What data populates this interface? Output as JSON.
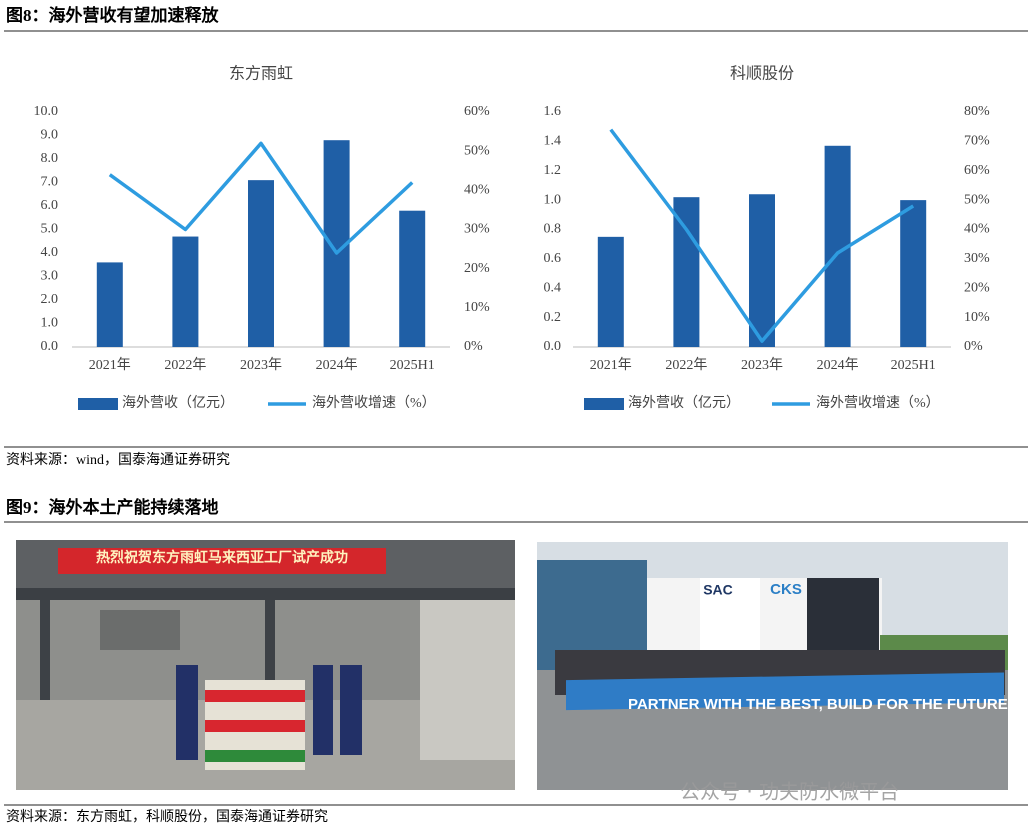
{
  "figure8": {
    "title": "图8：海外营收有望加速释放",
    "source": "资料来源：wind，国泰海通证券研究"
  },
  "chart_data": [
    {
      "type": "combo",
      "title": "东方雨虹",
      "categories": [
        "2021年",
        "2022年",
        "2023年",
        "2024年",
        "2025H1"
      ],
      "series": [
        {
          "name": "海外营收（亿元）",
          "color": "#1f5fa6",
          "mark": "bar",
          "values": [
            3.6,
            4.7,
            7.1,
            8.8,
            5.8
          ]
        },
        {
          "name": "海外营收增速（%）",
          "color": "#2e9ce0",
          "mark": "line",
          "axis": "y2",
          "values": [
            44,
            30,
            52,
            24,
            42
          ]
        }
      ],
      "ylim": [
        0,
        10
      ],
      "yticks": [
        {
          "value": 0,
          "label": "0.0"
        },
        {
          "value": 1,
          "label": "1.0"
        },
        {
          "value": 2,
          "label": "2.0"
        },
        {
          "value": 3,
          "label": "3.0"
        },
        {
          "value": 4,
          "label": "4.0"
        },
        {
          "value": 5,
          "label": "5.0"
        },
        {
          "value": 6,
          "label": "6.0"
        },
        {
          "value": 7,
          "label": "7.0"
        },
        {
          "value": 8,
          "label": "8.0"
        },
        {
          "value": 9,
          "label": "9.0"
        },
        {
          "value": 10,
          "label": "10.0"
        }
      ],
      "y2lim": [
        0,
        60
      ],
      "y2ticks": [
        {
          "value": 0,
          "label": "0%"
        },
        {
          "value": 10,
          "label": "10%"
        },
        {
          "value": 20,
          "label": "20%"
        },
        {
          "value": 30,
          "label": "30%"
        },
        {
          "value": 40,
          "label": "40%"
        },
        {
          "value": 50,
          "label": "50%"
        },
        {
          "value": 60,
          "label": "60%"
        }
      ]
    },
    {
      "type": "combo",
      "title": "科顺股份",
      "categories": [
        "2021年",
        "2022年",
        "2023年",
        "2024年",
        "2025H1"
      ],
      "series": [
        {
          "name": "海外营收（亿元）",
          "color": "#1f5fa6",
          "mark": "bar",
          "values": [
            0.75,
            1.02,
            1.04,
            1.37,
            1.0
          ]
        },
        {
          "name": "海外营收增速（%）",
          "color": "#2e9ce0",
          "mark": "line",
          "axis": "y2",
          "values": [
            74,
            40,
            2,
            32,
            48
          ]
        }
      ],
      "ylim": [
        0,
        1.6
      ],
      "yticks": [
        {
          "value": 0,
          "label": "0.0"
        },
        {
          "value": 0.2,
          "label": "0.2"
        },
        {
          "value": 0.4,
          "label": "0.4"
        },
        {
          "value": 0.6,
          "label": "0.6"
        },
        {
          "value": 0.8,
          "label": "0.8"
        },
        {
          "value": 1.0,
          "label": "1.0"
        },
        {
          "value": 1.2,
          "label": "1.2"
        },
        {
          "value": 1.4,
          "label": "1.4"
        },
        {
          "value": 1.6,
          "label": "1.6"
        }
      ],
      "y2lim": [
        0,
        80
      ],
      "y2ticks": [
        {
          "value": 0,
          "label": "0%"
        },
        {
          "value": 10,
          "label": "10%"
        },
        {
          "value": 20,
          "label": "20%"
        },
        {
          "value": 30,
          "label": "30%"
        },
        {
          "value": 40,
          "label": "40%"
        },
        {
          "value": 50,
          "label": "50%"
        },
        {
          "value": 60,
          "label": "60%"
        },
        {
          "value": 70,
          "label": "70%"
        },
        {
          "value": 80,
          "label": "80%"
        }
      ]
    }
  ],
  "figure9": {
    "title": "图9：海外本土产能持续落地",
    "photos": [
      {
        "banner": "热烈祝贺东方雨虹马来西亚工厂试产成功"
      },
      {
        "signs": [
          "SAC",
          "CKS"
        ],
        "banner": "PARTNER WITH THE BEST, BUILD FOR THE FUTURE."
      }
    ],
    "source": "资料来源：东方雨虹，科顺股份，国泰海通证券研究",
    "watermark": "公众号 · 功夫防水微平台"
  }
}
